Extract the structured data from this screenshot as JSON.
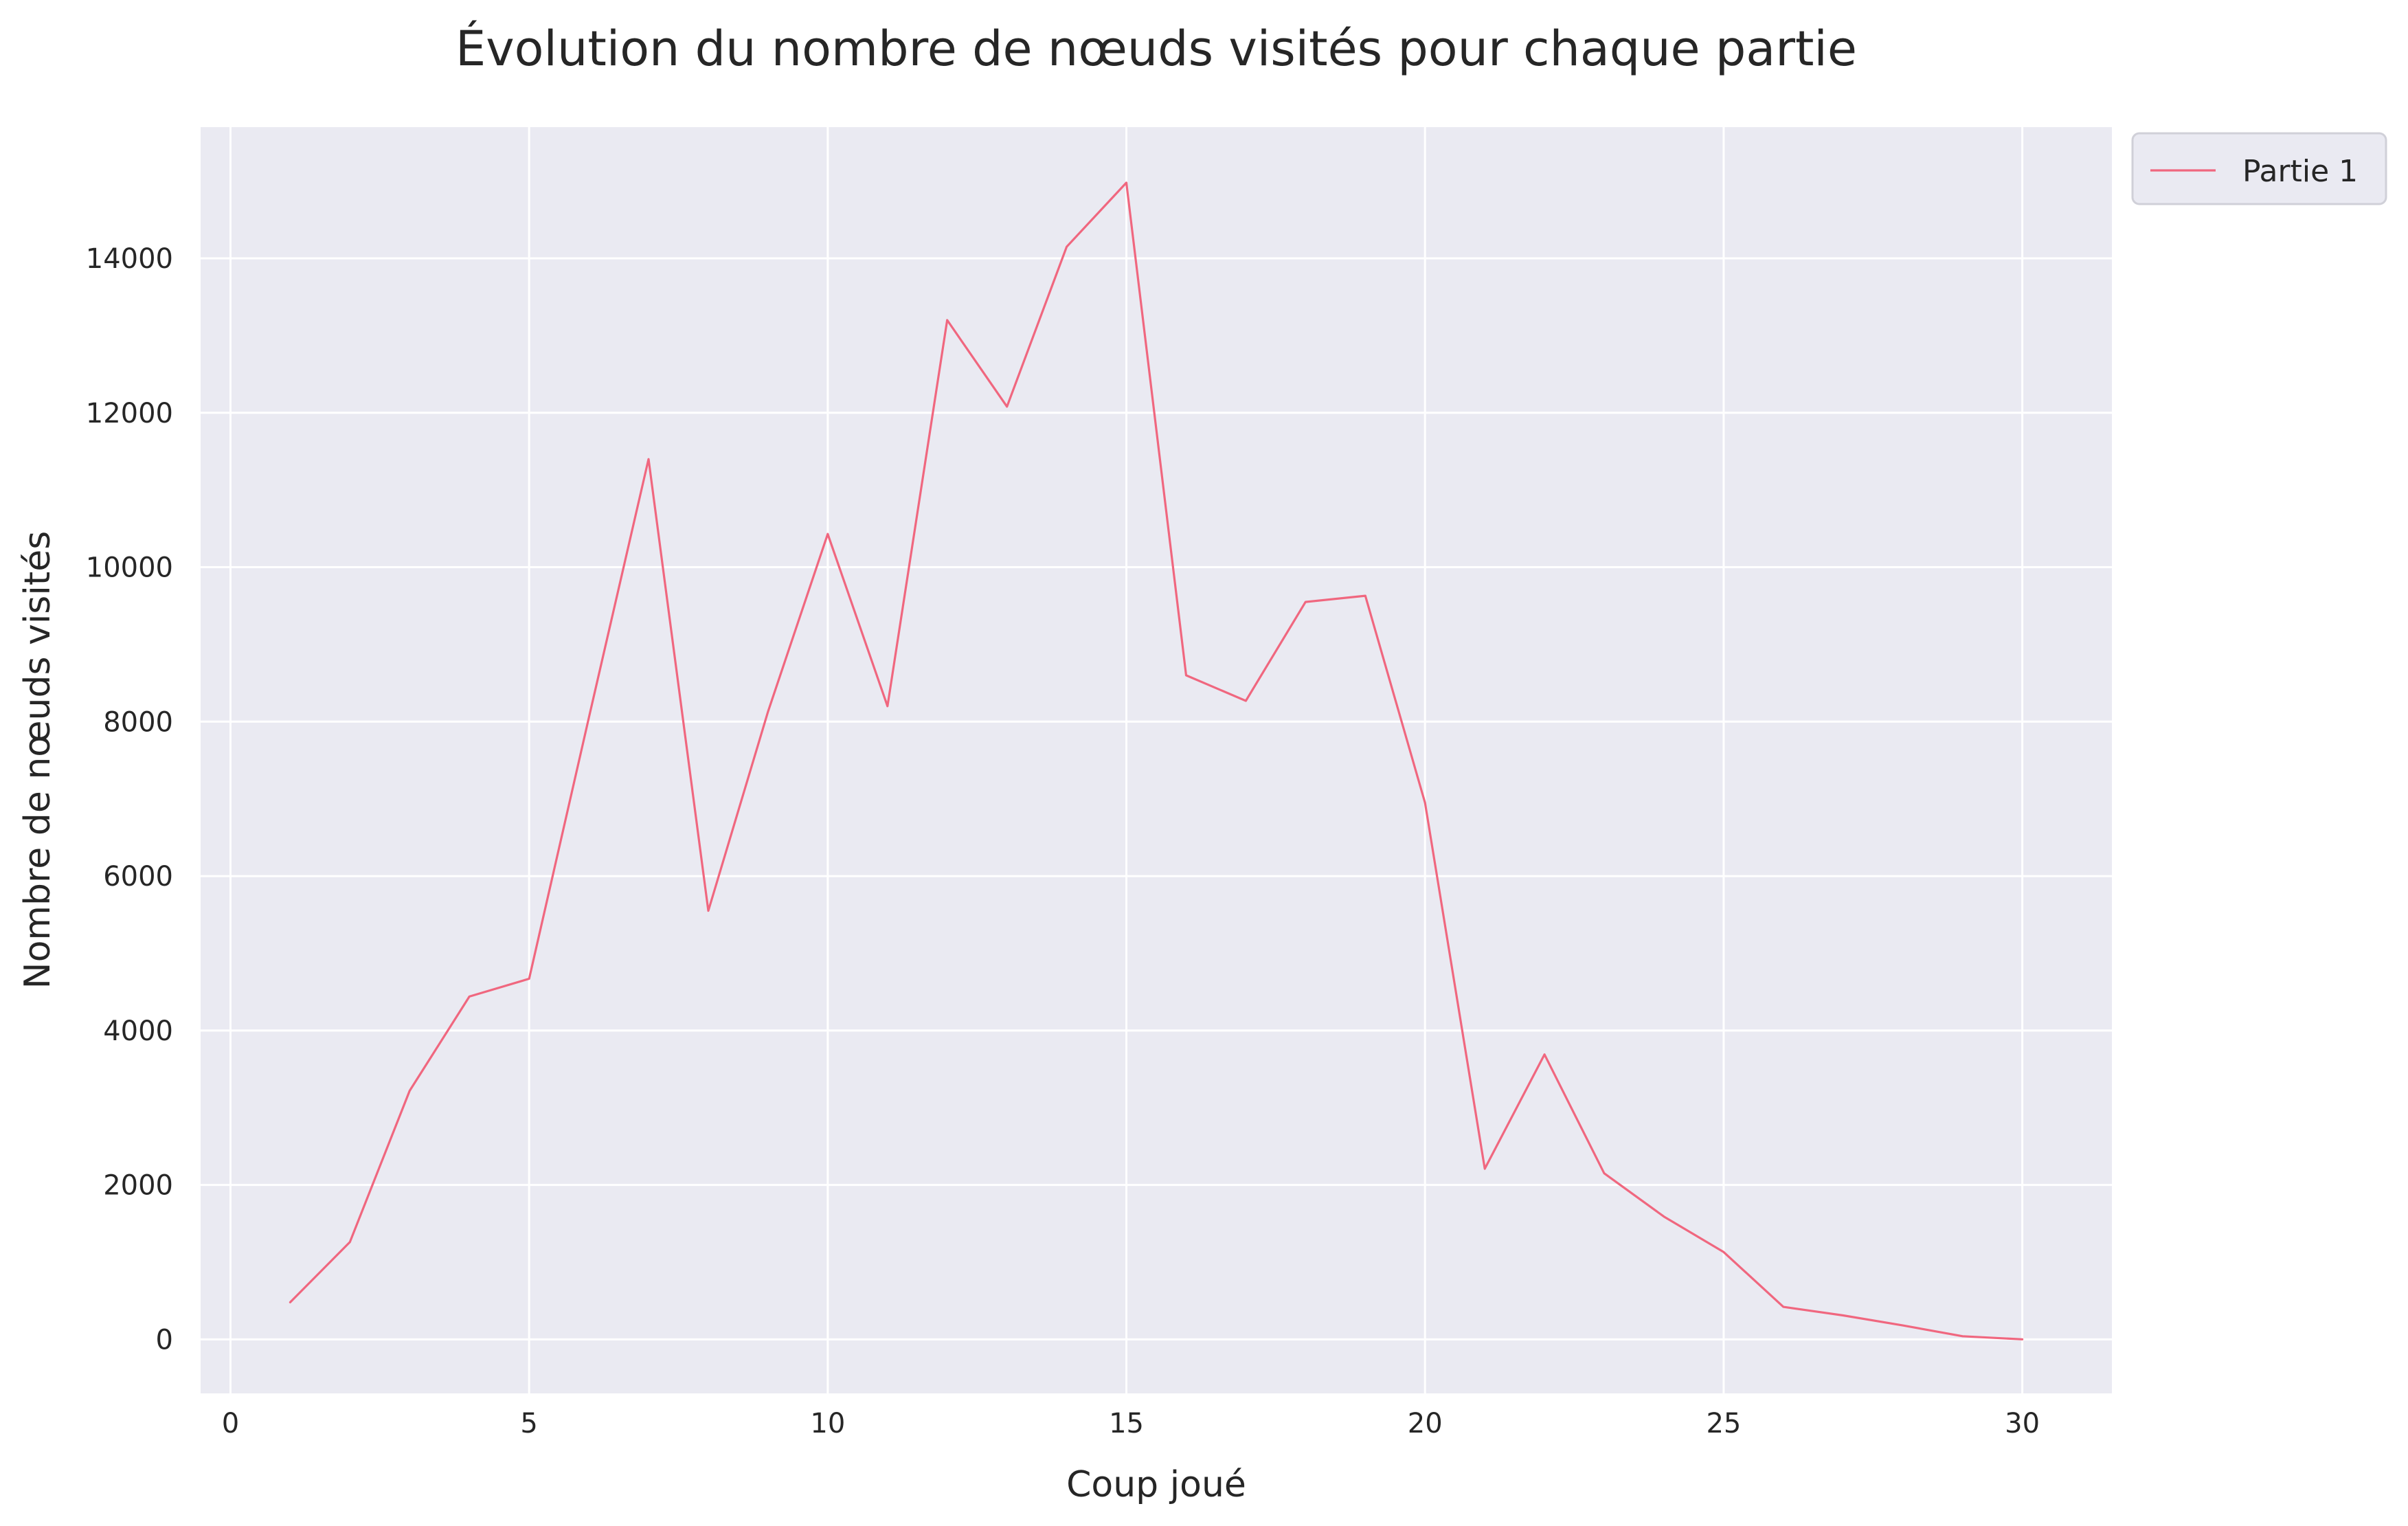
{
  "chart_data": {
    "type": "line",
    "title": "Évolution du nombre de nœuds visités pour chaque partie",
    "xlabel": "Coup joué",
    "ylabel": "Nombre de nœuds visités",
    "xlim": [
      -0.5,
      31.5
    ],
    "ylim": [
      -700,
      15700
    ],
    "xticks": [
      0,
      5,
      10,
      15,
      20,
      25,
      30
    ],
    "yticks": [
      0,
      2000,
      4000,
      6000,
      8000,
      10000,
      12000,
      14000
    ],
    "grid": true,
    "legend_position": "outside-top-right",
    "background_color": "#eaeaf2",
    "grid_color": "#ffffff",
    "series": [
      {
        "name": "Partie 1",
        "color": "#f0677f",
        "x": [
          1,
          2,
          3,
          4,
          5,
          6,
          7,
          8,
          9,
          10,
          11,
          12,
          13,
          14,
          15,
          16,
          17,
          18,
          19,
          20,
          21,
          22,
          23,
          24,
          25,
          26,
          27,
          28,
          29,
          30
        ],
        "y": [
          480,
          1260,
          3220,
          4440,
          4670,
          8050,
          11400,
          5550,
          8130,
          10430,
          8200,
          13200,
          12080,
          14150,
          14980,
          8600,
          8270,
          9550,
          9630,
          6950,
          2210,
          3690,
          2150,
          1590,
          1130,
          420,
          310,
          180,
          40,
          0
        ]
      }
    ]
  }
}
